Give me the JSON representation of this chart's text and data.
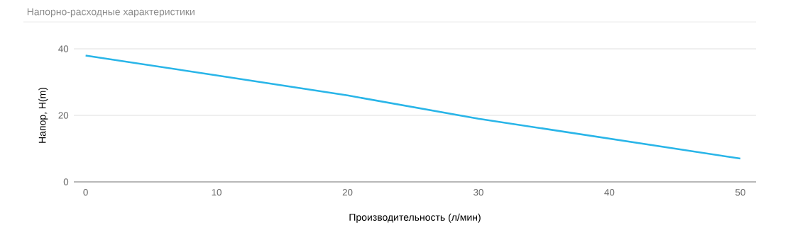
{
  "chart_data": {
    "type": "line",
    "title": "Напорно-расходные характеристики",
    "xlabel": "Производительность (л/мин)",
    "ylabel": "Напор, H(m)",
    "x": [
      0,
      10,
      20,
      30,
      40,
      50
    ],
    "series": [
      {
        "color": "#29b5e8",
        "values": [
          38,
          32,
          26,
          19,
          13,
          7
        ]
      }
    ],
    "xlim": [
      -0.9,
      51.2
    ],
    "ylim": [
      0,
      40
    ],
    "xticks": [
      0,
      10,
      20,
      30,
      40,
      50
    ],
    "yticks": [
      0,
      20,
      40
    ],
    "grid": "y"
  }
}
